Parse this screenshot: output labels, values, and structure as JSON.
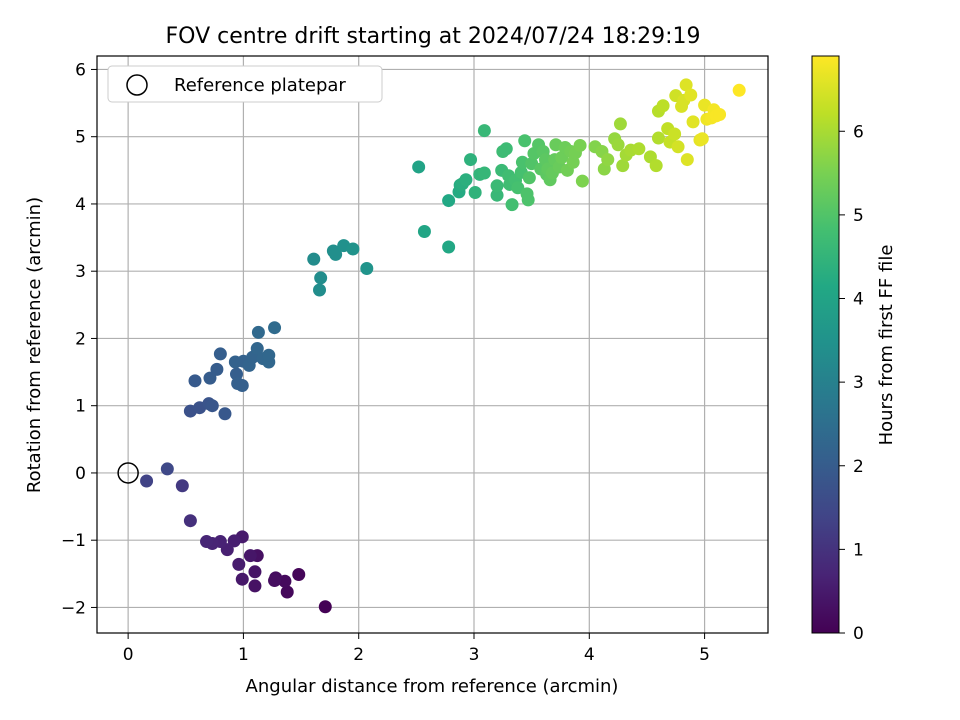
{
  "chart_data": {
    "type": "scatter",
    "title": "FOV centre drift starting at 2024/07/24 18:29:19",
    "xlabel": "Angular distance from reference (arcmin)",
    "ylabel": "Rotation from reference (arcmin)",
    "xlim": [
      -0.27,
      5.55
    ],
    "ylim": [
      -2.38,
      6.2
    ],
    "x_ticks": [
      0,
      1,
      2,
      3,
      4,
      5
    ],
    "y_ticks": [
      -2,
      -1,
      0,
      1,
      2,
      3,
      4,
      5,
      6
    ],
    "x_tick_labels": [
      "0",
      "1",
      "2",
      "3",
      "4",
      "5"
    ],
    "y_tick_labels": [
      "−2",
      "−1",
      "0",
      "1",
      "2",
      "3",
      "4",
      "5",
      "6"
    ],
    "grid": true,
    "legend": {
      "position": "top-left",
      "entries": [
        {
          "label": "Reference platepar",
          "marker": "open-circle"
        }
      ]
    },
    "reference_point": {
      "x": 0,
      "y": 0
    },
    "colorbar": {
      "label": "Hours from first FF file",
      "colormap": "viridis",
      "range": [
        0,
        6.9
      ],
      "ticks": [
        0,
        1,
        2,
        3,
        4,
        5,
        6
      ],
      "tick_labels": [
        "0",
        "1",
        "2",
        "3",
        "4",
        "5",
        "6"
      ]
    },
    "series": [
      {
        "points": [
          [
            1.71,
            -1.99,
            0.02
          ],
          [
            1.48,
            -1.51,
            0.1
          ],
          [
            1.38,
            -1.77,
            0.14
          ],
          [
            1.36,
            -1.61,
            0.18
          ],
          [
            1.28,
            -1.56,
            0.22
          ],
          [
            1.27,
            -1.6,
            0.26
          ],
          [
            1.12,
            -1.23,
            0.3
          ],
          [
            1.1,
            -1.68,
            0.34
          ],
          [
            1.1,
            -1.47,
            0.38
          ],
          [
            1.06,
            -1.23,
            0.42
          ],
          [
            0.99,
            -1.58,
            0.46
          ],
          [
            0.99,
            -0.95,
            0.5
          ],
          [
            0.96,
            -1.36,
            0.54
          ],
          [
            0.92,
            -1.01,
            0.58
          ],
          [
            0.86,
            -1.14,
            0.62
          ],
          [
            0.8,
            -1.02,
            0.66
          ],
          [
            0.73,
            -1.05,
            0.7
          ],
          [
            0.68,
            -1.02,
            0.74
          ],
          [
            0.54,
            -0.71,
            0.95
          ],
          [
            0.47,
            -0.19,
            1.15
          ],
          [
            0.16,
            -0.12,
            1.35
          ],
          [
            0.34,
            0.06,
            1.5
          ],
          [
            0.54,
            0.92,
            1.7
          ],
          [
            0.62,
            0.97,
            1.75
          ],
          [
            0.7,
            1.03,
            1.8
          ],
          [
            0.73,
            1.0,
            1.85
          ],
          [
            0.84,
            0.88,
            1.9
          ],
          [
            0.58,
            1.37,
            1.95
          ],
          [
            0.71,
            1.41,
            2.0
          ],
          [
            0.77,
            1.54,
            2.0
          ],
          [
            0.8,
            1.77,
            2.05
          ],
          [
            0.94,
            1.47,
            2.05
          ],
          [
            0.95,
            1.33,
            2.1
          ],
          [
            0.99,
            1.3,
            2.1
          ],
          [
            0.93,
            1.65,
            2.15
          ],
          [
            1.0,
            1.66,
            2.15
          ],
          [
            1.05,
            1.6,
            2.2
          ],
          [
            1.08,
            1.72,
            2.2
          ],
          [
            1.12,
            1.85,
            2.25
          ],
          [
            1.17,
            1.7,
            2.25
          ],
          [
            1.22,
            1.65,
            2.3
          ],
          [
            1.22,
            1.75,
            2.3
          ],
          [
            1.13,
            2.09,
            2.35
          ],
          [
            1.27,
            2.16,
            2.4
          ],
          [
            1.61,
            3.18,
            3.3
          ],
          [
            1.66,
            2.72,
            3.35
          ],
          [
            1.67,
            2.9,
            3.35
          ],
          [
            1.78,
            3.3,
            3.4
          ],
          [
            1.8,
            3.25,
            3.4
          ],
          [
            1.87,
            3.38,
            3.45
          ],
          [
            1.95,
            3.33,
            3.5
          ],
          [
            2.07,
            3.04,
            3.55
          ],
          [
            2.52,
            4.55,
            4.0
          ],
          [
            2.57,
            3.59,
            4.05
          ],
          [
            2.78,
            3.36,
            4.1
          ],
          [
            2.78,
            4.05,
            4.15
          ],
          [
            2.87,
            4.18,
            4.2
          ],
          [
            2.88,
            4.28,
            4.25
          ],
          [
            2.9,
            4.3,
            4.3
          ],
          [
            2.93,
            4.36,
            4.35
          ],
          [
            2.97,
            4.66,
            4.4
          ],
          [
            3.01,
            4.17,
            4.45
          ],
          [
            3.05,
            4.44,
            4.5
          ],
          [
            3.09,
            4.46,
            4.55
          ],
          [
            3.09,
            5.09,
            4.6
          ],
          [
            3.2,
            4.13,
            4.6
          ],
          [
            3.2,
            4.27,
            4.65
          ],
          [
            3.24,
            4.5,
            4.65
          ],
          [
            3.25,
            4.78,
            4.7
          ],
          [
            3.28,
            4.82,
            4.7
          ],
          [
            3.3,
            4.42,
            4.75
          ],
          [
            3.31,
            4.29,
            4.75
          ],
          [
            3.33,
            3.99,
            4.8
          ],
          [
            3.36,
            4.35,
            4.8
          ],
          [
            3.38,
            4.24,
            4.85
          ],
          [
            3.41,
            4.47,
            4.85
          ],
          [
            3.42,
            4.62,
            4.9
          ],
          [
            3.44,
            4.94,
            4.9
          ],
          [
            3.46,
            4.15,
            4.95
          ],
          [
            3.47,
            4.06,
            4.95
          ],
          [
            3.48,
            4.39,
            5.0
          ],
          [
            3.5,
            4.6,
            5.0
          ],
          [
            3.52,
            4.75,
            5.05
          ],
          [
            3.56,
            4.88,
            5.05
          ],
          [
            3.58,
            4.52,
            5.1
          ],
          [
            3.6,
            4.78,
            5.1
          ],
          [
            3.62,
            4.66,
            5.15
          ],
          [
            3.63,
            4.44,
            5.15
          ],
          [
            3.64,
            4.52,
            5.2
          ],
          [
            3.66,
            4.36,
            5.2
          ],
          [
            3.68,
            4.46,
            5.25
          ],
          [
            3.7,
            4.66,
            5.25
          ],
          [
            3.71,
            4.88,
            5.3
          ],
          [
            3.74,
            4.55,
            5.3
          ],
          [
            3.76,
            4.69,
            5.35
          ],
          [
            3.79,
            4.84,
            5.35
          ],
          [
            3.81,
            4.5,
            5.4
          ],
          [
            3.84,
            4.78,
            5.4
          ],
          [
            3.86,
            4.62,
            5.45
          ],
          [
            3.88,
            4.76,
            5.45
          ],
          [
            3.92,
            4.87,
            5.5
          ],
          [
            3.94,
            4.34,
            5.55
          ],
          [
            4.05,
            4.85,
            5.6
          ],
          [
            4.11,
            4.78,
            5.65
          ],
          [
            4.13,
            4.52,
            5.7
          ],
          [
            4.16,
            4.66,
            5.75
          ],
          [
            4.22,
            4.97,
            5.8
          ],
          [
            4.25,
            4.88,
            5.85
          ],
          [
            4.27,
            5.19,
            5.9
          ],
          [
            4.29,
            4.57,
            5.9
          ],
          [
            4.32,
            4.73,
            5.95
          ],
          [
            4.36,
            4.8,
            6.0
          ],
          [
            4.43,
            4.82,
            6.05
          ],
          [
            4.53,
            4.7,
            6.05
          ],
          [
            4.58,
            4.57,
            6.1
          ],
          [
            4.6,
            4.98,
            6.1
          ],
          [
            4.6,
            5.38,
            6.15
          ],
          [
            4.64,
            5.46,
            6.2
          ],
          [
            4.68,
            5.12,
            6.25
          ],
          [
            4.7,
            4.92,
            6.3
          ],
          [
            4.74,
            5.04,
            6.35
          ],
          [
            4.75,
            5.61,
            6.4
          ],
          [
            4.77,
            4.85,
            6.45
          ],
          [
            4.8,
            5.45,
            6.5
          ],
          [
            4.82,
            5.54,
            6.5
          ],
          [
            4.84,
            5.77,
            6.55
          ],
          [
            4.85,
            4.66,
            6.55
          ],
          [
            4.88,
            5.62,
            6.6
          ],
          [
            4.9,
            5.22,
            6.6
          ],
          [
            4.96,
            4.95,
            6.65
          ],
          [
            4.98,
            4.97,
            6.7
          ],
          [
            5.0,
            5.47,
            6.7
          ],
          [
            5.02,
            5.26,
            6.75
          ],
          [
            5.06,
            5.28,
            6.8
          ],
          [
            5.08,
            5.4,
            6.8
          ],
          [
            5.1,
            5.31,
            6.85
          ],
          [
            5.13,
            5.33,
            6.85
          ],
          [
            5.3,
            5.69,
            6.9
          ]
        ]
      }
    ]
  }
}
